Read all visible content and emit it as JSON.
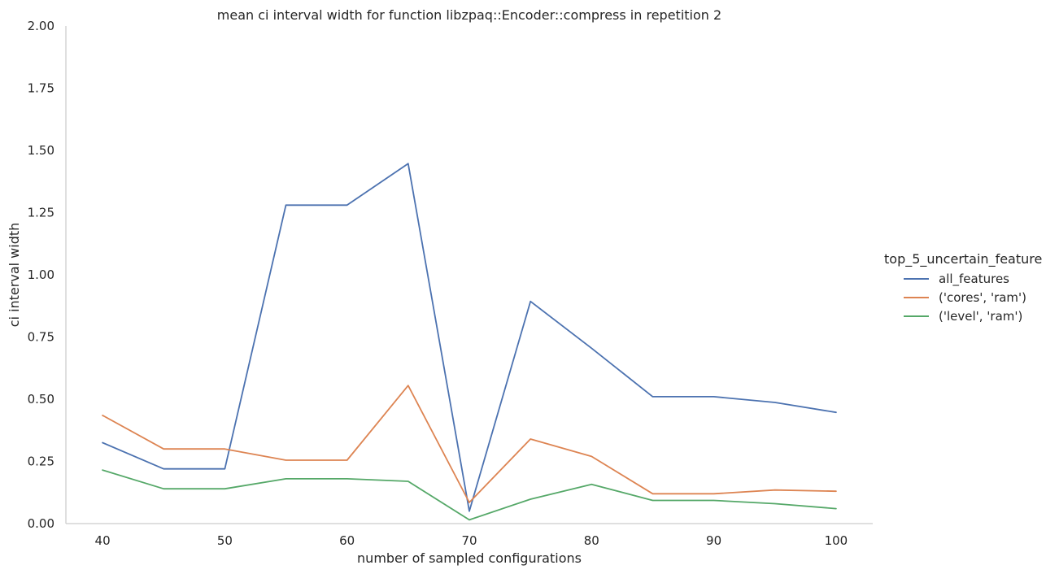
{
  "chart_data": {
    "type": "line",
    "title": "mean ci interval width for function libzpaq::Encoder::compress in repetition 2",
    "xlabel": "number of sampled configurations",
    "ylabel": "ci interval width",
    "x": [
      40,
      45,
      50,
      55,
      60,
      65,
      70,
      75,
      80,
      85,
      90,
      95,
      100
    ],
    "xlim": [
      37,
      103
    ],
    "ylim": [
      0,
      2.0
    ],
    "xticks": [
      "40",
      "50",
      "60",
      "70",
      "80",
      "90",
      "100"
    ],
    "yticks": [
      "0.00",
      "0.25",
      "0.50",
      "0.75",
      "1.00",
      "1.25",
      "1.50",
      "1.75",
      "2.00"
    ],
    "grid": false,
    "legend": {
      "title": "top_5_uncertain_feature",
      "placement": "right"
    },
    "series": [
      {
        "name": "all_features",
        "color": "#4c72b0",
        "values": [
          0.325,
          0.22,
          0.22,
          1.28,
          1.28,
          1.447,
          0.05,
          0.893,
          0.705,
          0.51,
          0.51,
          0.487,
          0.447
        ]
      },
      {
        "name": "('cores', 'ram')",
        "color": "#dd8452",
        "values": [
          0.435,
          0.3,
          0.3,
          0.255,
          0.255,
          0.555,
          0.085,
          0.34,
          0.27,
          0.12,
          0.12,
          0.135,
          0.13
        ]
      },
      {
        "name": "('level', 'ram')",
        "color": "#55a868",
        "values": [
          0.215,
          0.14,
          0.14,
          0.18,
          0.18,
          0.17,
          0.015,
          0.098,
          0.158,
          0.093,
          0.093,
          0.08,
          0.06
        ]
      }
    ]
  }
}
